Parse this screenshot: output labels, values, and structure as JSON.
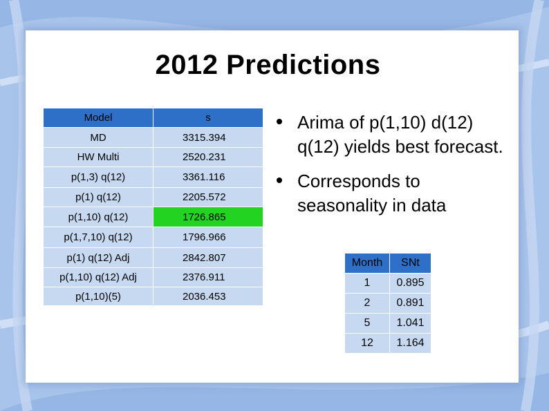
{
  "slide": {
    "title": "2012 Predictions",
    "colors": {
      "header": "#2e6fc8",
      "cell": "#c6d9f1",
      "highlight": "#22d322"
    },
    "main_table": {
      "headers": [
        "Model",
        "s"
      ],
      "rows": [
        [
          "MD",
          "3315.394"
        ],
        [
          "HW Multi",
          "2520.231"
        ],
        [
          "p(1,3) q(12)",
          "3361.116"
        ],
        [
          "p(1) q(12)",
          "2205.572"
        ],
        [
          "p(1,10) q(12)",
          "1726.865"
        ],
        [
          "p(1,7,10) q(12)",
          "1796.966"
        ],
        [
          "p(1) q(12) Adj",
          "2842.807"
        ],
        [
          "p(1,10) q(12) Adj",
          "2376.911"
        ],
        [
          "p(1,10)(5)",
          "2036.453"
        ]
      ]
    },
    "bullets": [
      "Arima of p(1,10) d(12) q(12) yields best forecast.",
      "Corresponds to seasonality in data"
    ],
    "small_table": {
      "headers": [
        "Month",
        "SNt"
      ],
      "rows": [
        [
          "1",
          "0.895"
        ],
        [
          "2",
          "0.891"
        ],
        [
          "5",
          "1.041"
        ],
        [
          "12",
          "1.164"
        ]
      ]
    }
  }
}
